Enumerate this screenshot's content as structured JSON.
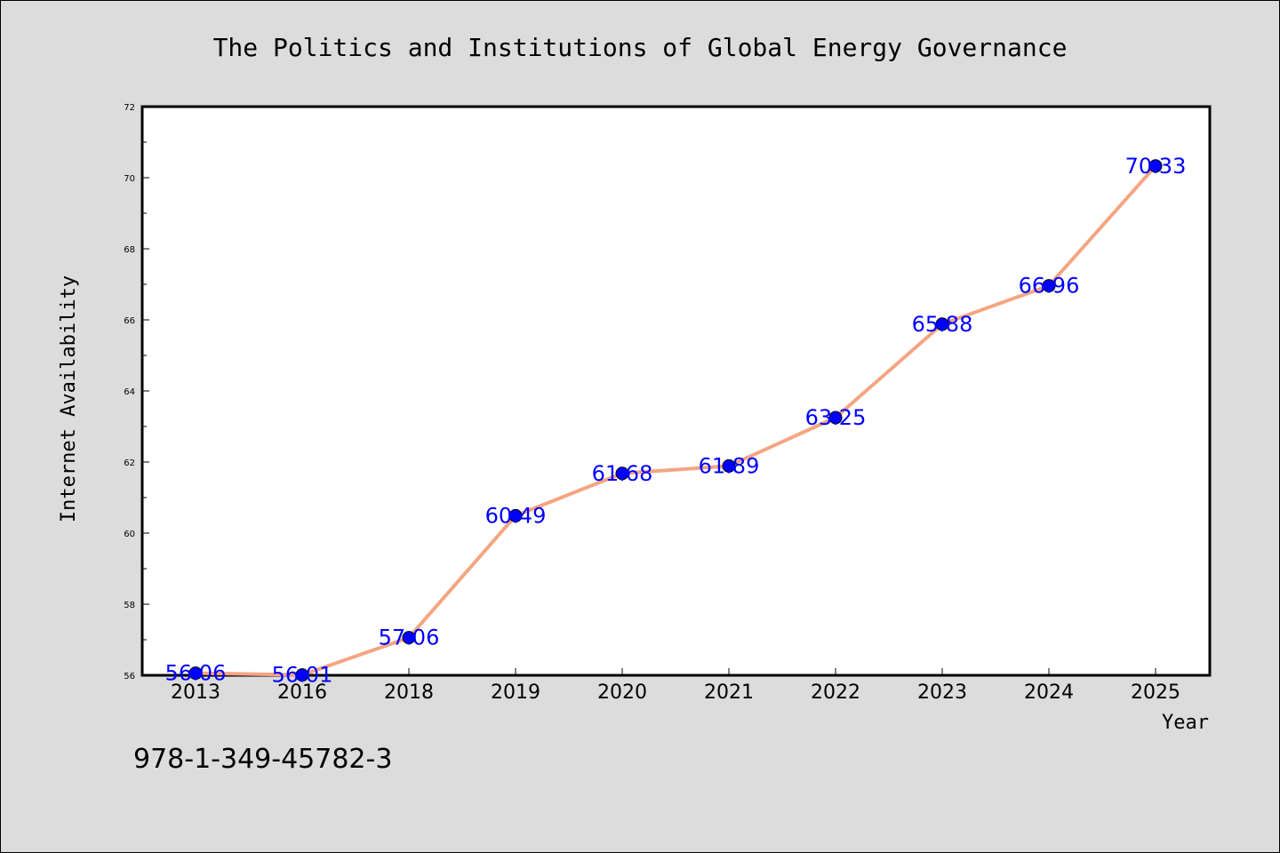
{
  "chart_data": {
    "type": "line",
    "title": "The Politics and Institutions of Global Energy Governance",
    "xlabel": "Year",
    "ylabel": "Internet Availability",
    "categories": [
      "2013",
      "2016",
      "2018",
      "2019",
      "2020",
      "2021",
      "2022",
      "2023",
      "2024",
      "2025"
    ],
    "series": [
      {
        "values": [
          56.06,
          56.01,
          57.06,
          60.49,
          61.68,
          61.89,
          63.25,
          65.88,
          66.96,
          70.33
        ]
      }
    ],
    "data_labels": [
      "56.06",
      "56.01",
      "57.06",
      "60.49",
      "61.68",
      "61.89",
      "63.25",
      "65.88",
      "66.96",
      "70.33"
    ],
    "ylim": [
      56,
      72
    ],
    "yticks": [
      "56",
      "58",
      "60",
      "62",
      "64",
      "66",
      "68",
      "70",
      "72"
    ],
    "grid": false,
    "colors": {
      "line": "#f4a582",
      "marker": "#0000ff",
      "data_label": "#0000ff",
      "background": "#dcdcdc",
      "plot_area": "#ffffff"
    }
  },
  "annotation": "978-1-349-45782-3"
}
